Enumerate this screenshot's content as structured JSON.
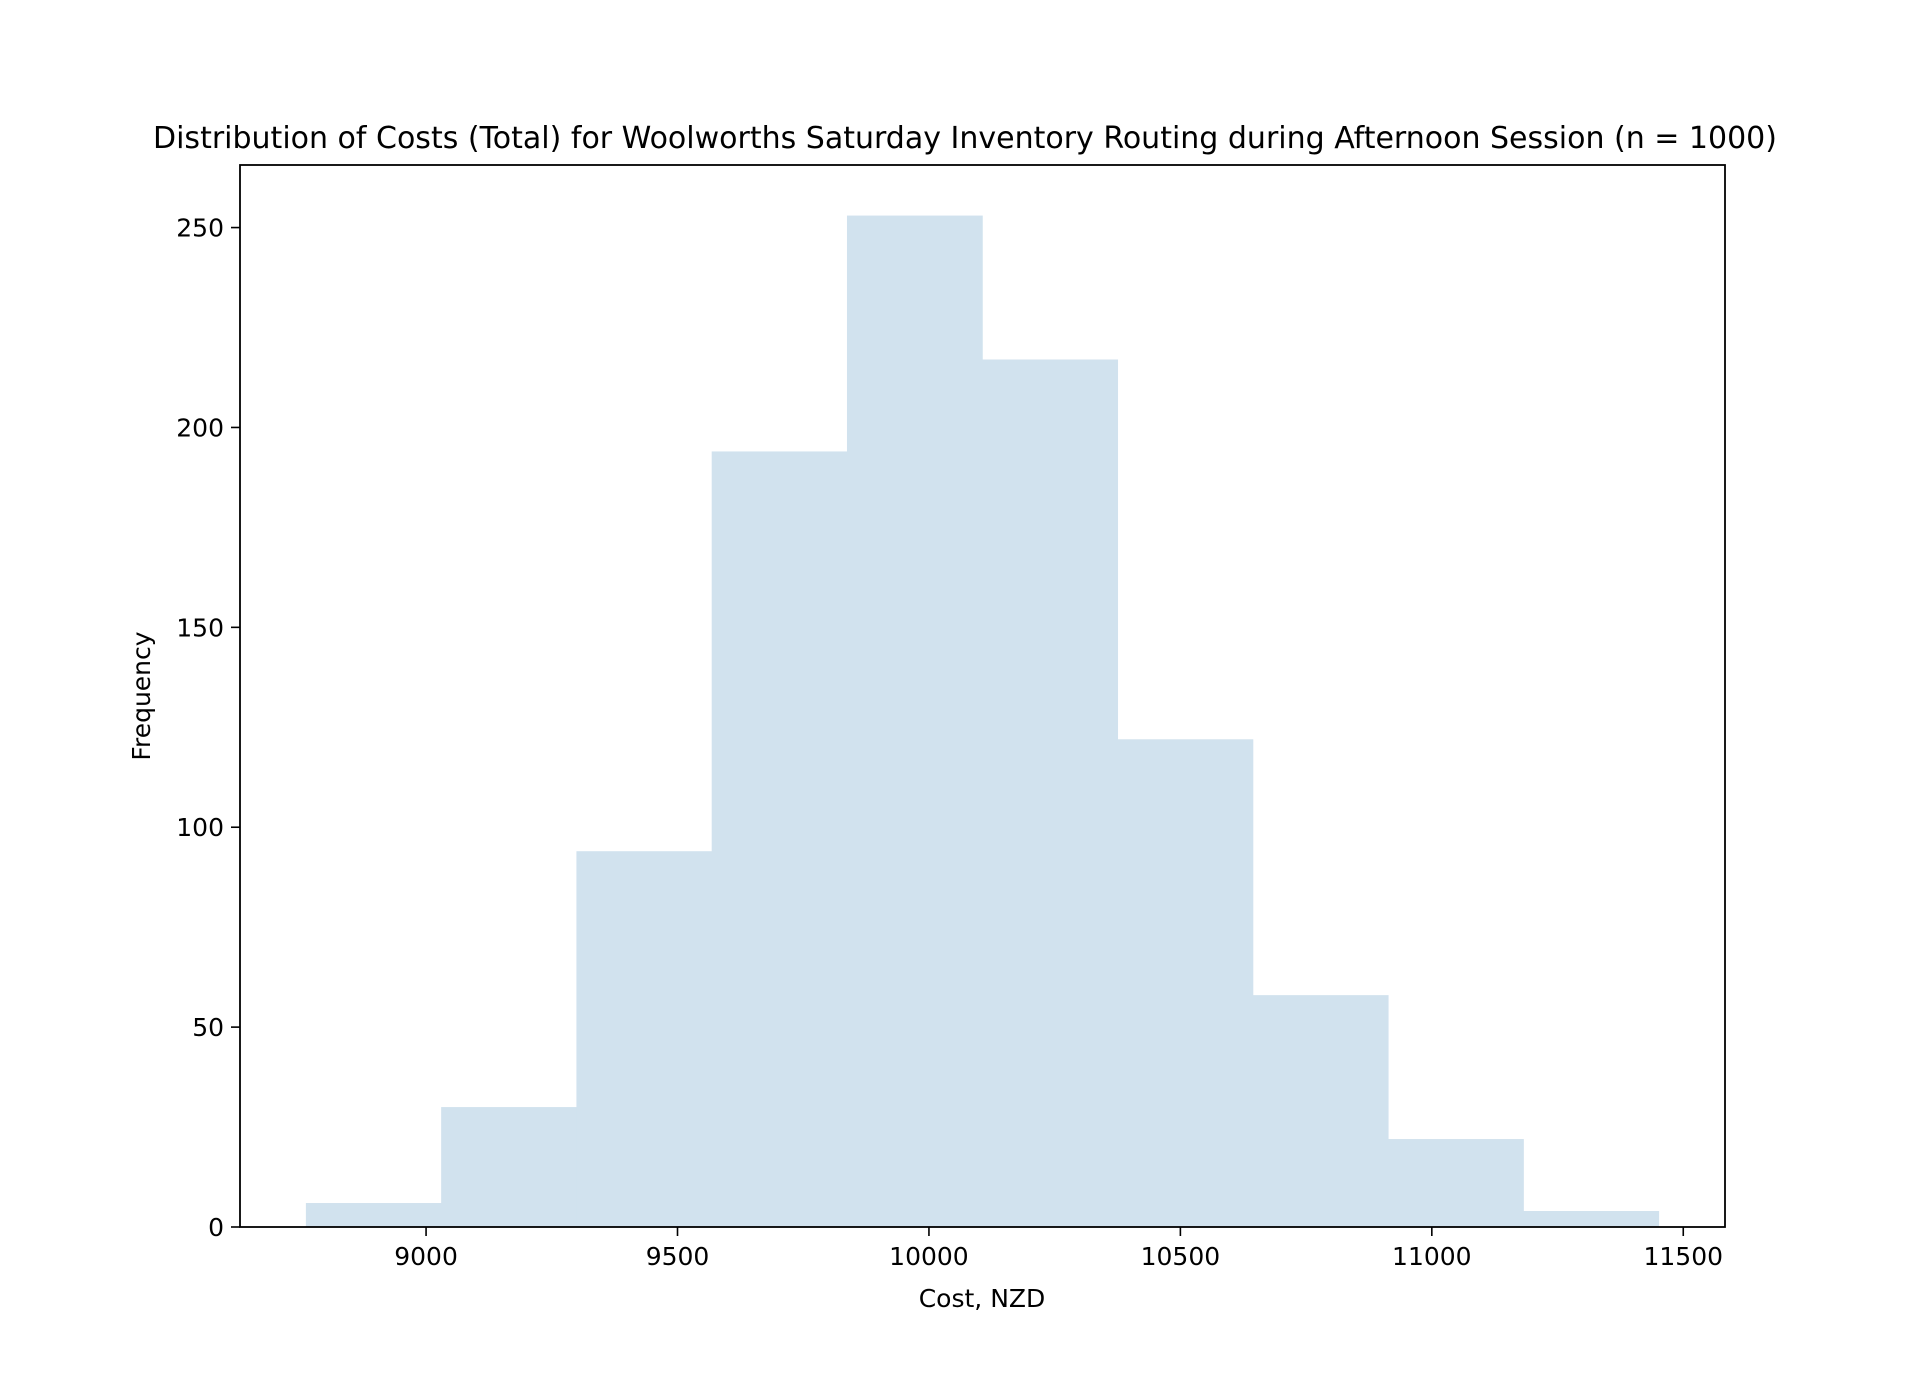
{
  "chart_data": {
    "type": "histogram",
    "title": "Distribution of Costs (Total) for Woolworths Saturday Inventory Routing during Afternoon Session (n = 1000)",
    "xlabel": "Cost, NZD",
    "ylabel": "Frequency",
    "bin_edges": [
      8761,
      9030,
      9299,
      9568,
      9837,
      10106,
      10375,
      10644,
      10913,
      11182,
      11451
    ],
    "counts": [
      6,
      30,
      94,
      194,
      253,
      217,
      122,
      58,
      22,
      4
    ],
    "xlim": [
      8630,
      11583
    ],
    "ylim": [
      0,
      265.65
    ],
    "xticks": [
      9000,
      9500,
      10000,
      10500,
      11000,
      11500
    ],
    "yticks": [
      0,
      50,
      100,
      150,
      200,
      250
    ],
    "xtick_labels": [
      "9000",
      "9500",
      "10000",
      "10500",
      "11000",
      "11500"
    ],
    "ytick_labels": [
      "0",
      "50",
      "100",
      "150",
      "200",
      "250"
    ],
    "bar_color": "#d1e2ee",
    "grid": false
  }
}
